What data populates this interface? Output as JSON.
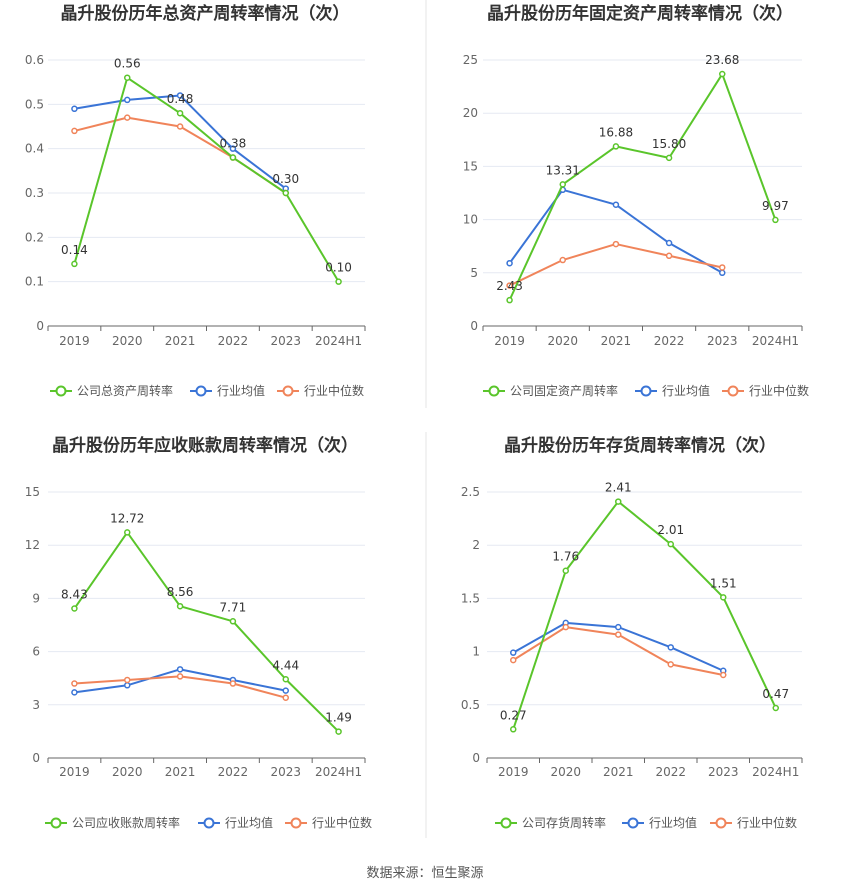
{
  "source": "数据来源：恒生聚源",
  "colors": {
    "company": "#5ac52b",
    "avg": "#3a74d6",
    "median": "#f0845a"
  },
  "chart_data": [
    {
      "type": "line",
      "title": "晶升股份历年总资产周转率情况（次）",
      "categories": [
        "2019",
        "2020",
        "2021",
        "2022",
        "2023",
        "2024H1"
      ],
      "yticks": [
        "0",
        "0.1",
        "0.2",
        "0.3",
        "0.4",
        "0.5",
        "0.6"
      ],
      "ylim": [
        0,
        0.6
      ],
      "series": [
        {
          "name": "公司总资产周转率",
          "values": [
            0.14,
            0.56,
            0.48,
            0.38,
            0.3,
            0.1
          ],
          "labels": [
            "0.14",
            "0.56",
            "0.48",
            "0.38",
            "0.30",
            "0.10"
          ]
        },
        {
          "name": "行业均值",
          "values": [
            0.49,
            0.51,
            0.52,
            0.4,
            0.31,
            null
          ]
        },
        {
          "name": "行业中位数",
          "values": [
            0.44,
            0.47,
            0.45,
            0.38,
            0.3,
            null
          ]
        }
      ]
    },
    {
      "type": "line",
      "title": "晶升股份历年固定资产周转率情况（次）",
      "categories": [
        "2019",
        "2020",
        "2021",
        "2022",
        "2023",
        "2024H1"
      ],
      "yticks": [
        "0",
        "5",
        "10",
        "15",
        "20",
        "25"
      ],
      "ylim": [
        0,
        25
      ],
      "series": [
        {
          "name": "公司固定资产周转率",
          "values": [
            2.43,
            13.31,
            16.88,
            15.8,
            23.68,
            9.97
          ],
          "labels": [
            "2.43",
            "13.31",
            "16.88",
            "15.80",
            "23.68",
            "9.97"
          ]
        },
        {
          "name": "行业均值",
          "values": [
            5.9,
            12.8,
            11.4,
            7.8,
            5.0,
            null
          ]
        },
        {
          "name": "行业中位数",
          "values": [
            3.8,
            6.2,
            7.7,
            6.6,
            5.5,
            null
          ]
        }
      ]
    },
    {
      "type": "line",
      "title": "晶升股份历年应收账款周转率情况（次）",
      "categories": [
        "2019",
        "2020",
        "2021",
        "2022",
        "2023",
        "2024H1"
      ],
      "yticks": [
        "0",
        "3",
        "6",
        "9",
        "12",
        "15"
      ],
      "ylim": [
        0,
        15
      ],
      "series": [
        {
          "name": "公司应收账款周转率",
          "values": [
            8.43,
            12.72,
            8.56,
            7.71,
            4.44,
            1.49
          ],
          "labels": [
            "8.43",
            "12.72",
            "8.56",
            "7.71",
            "4.44",
            "1.49"
          ]
        },
        {
          "name": "行业均值",
          "values": [
            3.7,
            4.1,
            5.0,
            4.4,
            3.8,
            null
          ]
        },
        {
          "name": "行业中位数",
          "values": [
            4.2,
            4.4,
            4.6,
            4.2,
            3.4,
            null
          ]
        }
      ]
    },
    {
      "type": "line",
      "title": "晶升股份历年存货周转率情况（次）",
      "categories": [
        "2019",
        "2020",
        "2021",
        "2022",
        "2023",
        "2024H1"
      ],
      "yticks": [
        "0",
        "0.5",
        "1",
        "1.5",
        "2",
        "2.5"
      ],
      "ylim": [
        0,
        2.5
      ],
      "series": [
        {
          "name": "公司存货周转率",
          "values": [
            0.27,
            1.76,
            2.41,
            2.01,
            1.51,
            0.47
          ],
          "labels": [
            "0.27",
            "1.76",
            "2.41",
            "2.01",
            "1.51",
            "0.47"
          ]
        },
        {
          "name": "行业均值",
          "values": [
            0.99,
            1.27,
            1.23,
            1.04,
            0.82,
            null
          ]
        },
        {
          "name": "行业中位数",
          "values": [
            0.92,
            1.23,
            1.16,
            0.88,
            0.78,
            null
          ]
        }
      ]
    }
  ]
}
